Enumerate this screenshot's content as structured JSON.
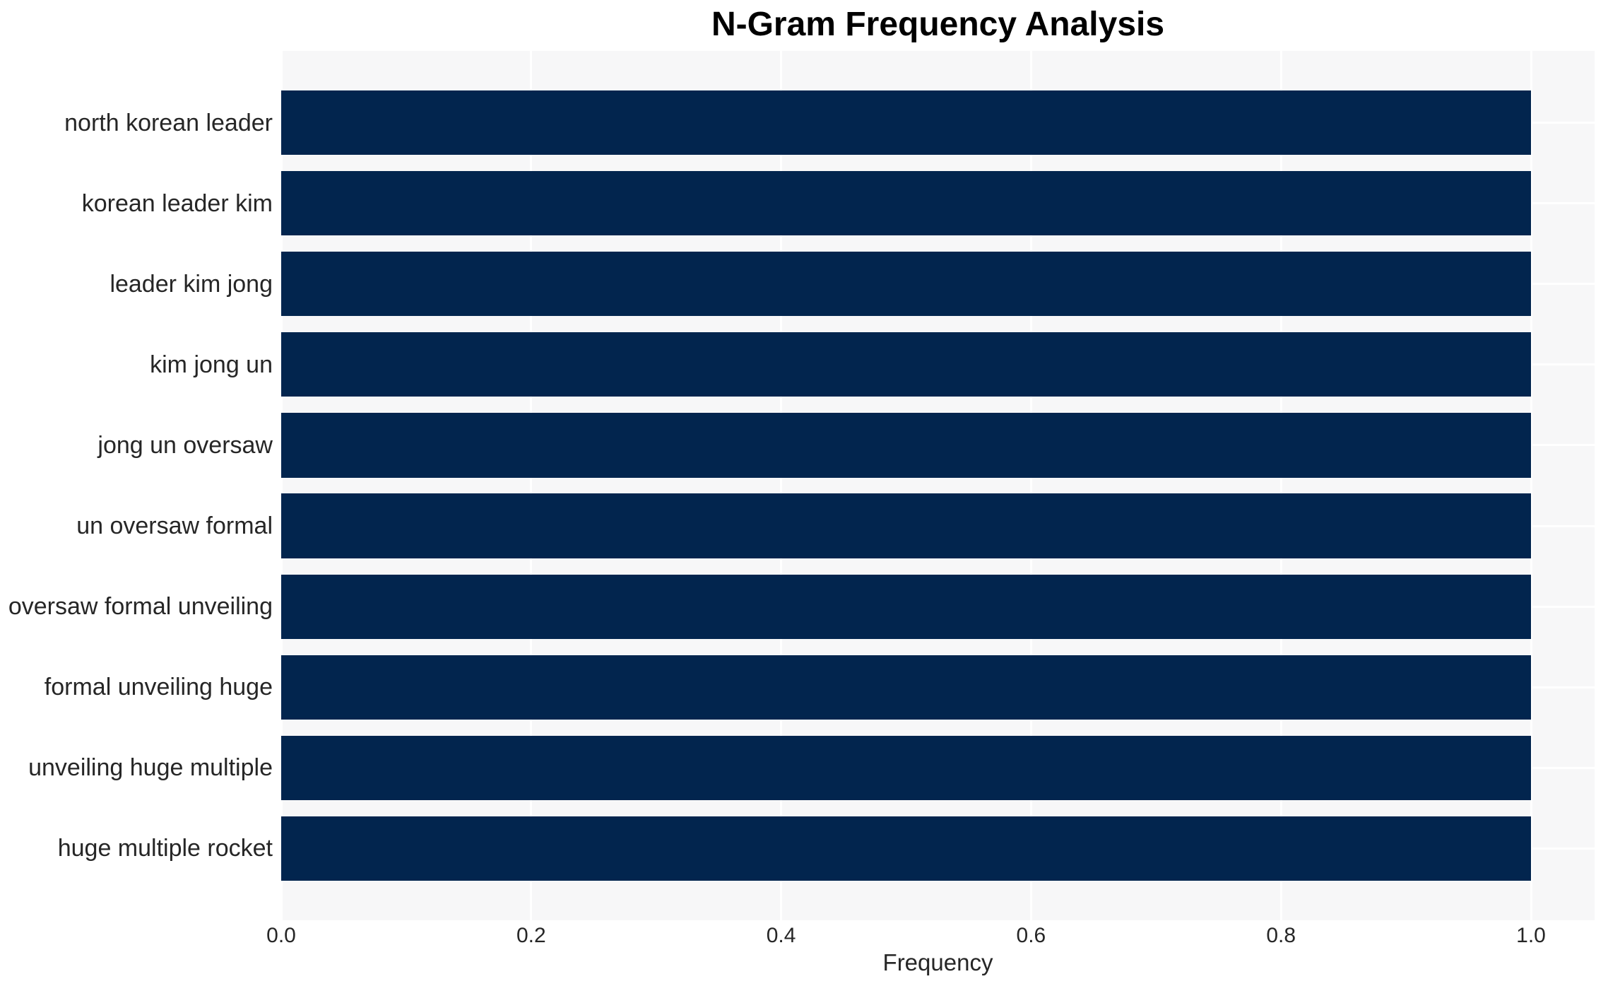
{
  "chart_data": {
    "type": "bar",
    "orientation": "horizontal",
    "title": "N-Gram Frequency Analysis",
    "xlabel": "Frequency",
    "ylabel": "",
    "categories": [
      "north korean leader",
      "korean leader kim",
      "leader kim jong",
      "kim jong un",
      "jong un oversaw",
      "un oversaw formal",
      "oversaw formal unveiling",
      "formal unveiling huge",
      "unveiling huge multiple",
      "huge multiple rocket"
    ],
    "values": [
      1.0,
      1.0,
      1.0,
      1.0,
      1.0,
      1.0,
      1.0,
      1.0,
      1.0,
      1.0
    ],
    "xlim": [
      0,
      1.05
    ],
    "xtick_labels": [
      "0.0",
      "0.2",
      "0.4",
      "0.6",
      "0.8",
      "1.0"
    ],
    "xtick_values": [
      0,
      0.2,
      0.4,
      0.6,
      0.8,
      1.0
    ],
    "grid": true,
    "legend": false,
    "colors": {
      "bar": "#02254e",
      "plot_background": "#f7f7f8",
      "figure_background": "#ffffff",
      "gridline": "#ffffff",
      "tick_label": "#262626",
      "title": "#000000"
    }
  }
}
